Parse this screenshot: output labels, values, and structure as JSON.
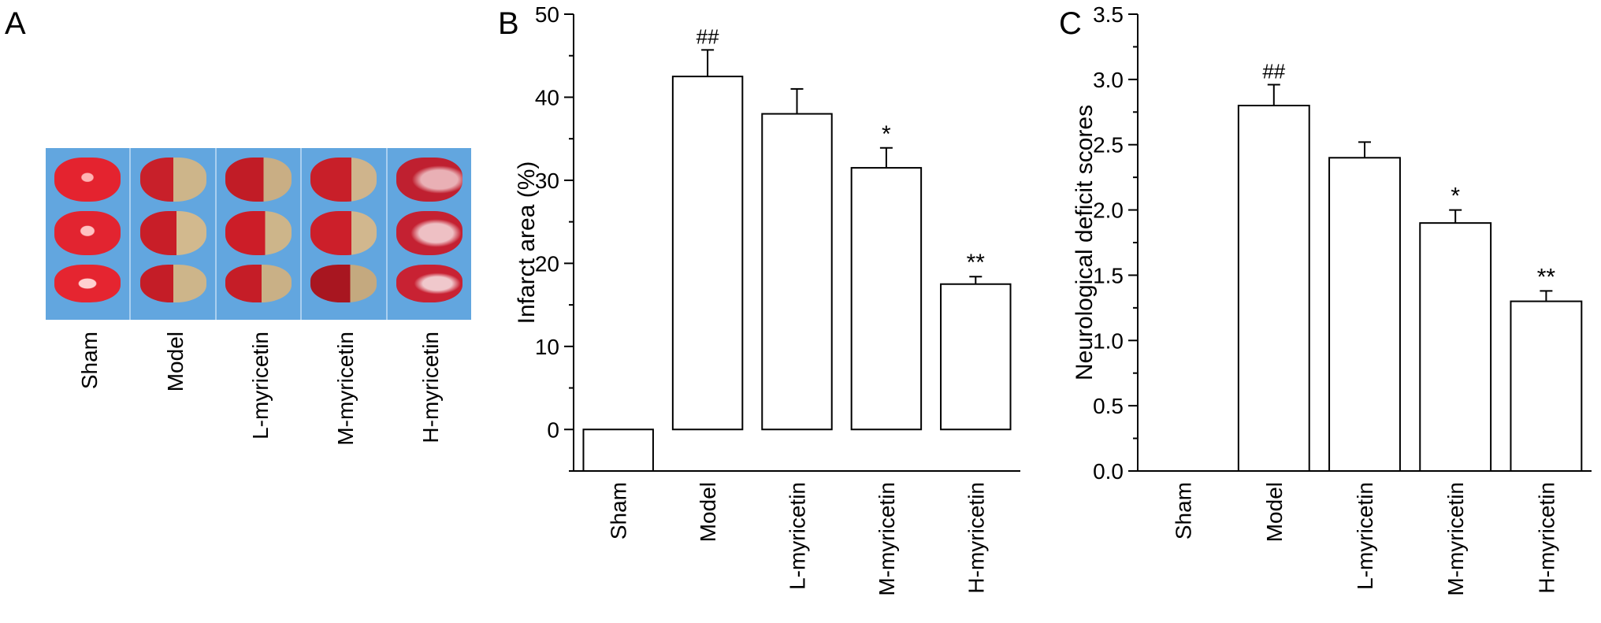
{
  "panels": {
    "a": "A",
    "b": "B",
    "c": "C"
  },
  "photo_groups": [
    "Sham",
    "Model",
    "L-myricetin",
    "M-myricetin",
    "H-myricetin"
  ],
  "colors": {
    "photo_background": "#62a6df",
    "slice_red": "#d9202c",
    "slice_pale": "#cdb58a",
    "bar_fill": "#ffffff",
    "axis": "#000000"
  },
  "chart_data": [
    {
      "type": "bar",
      "categories": [
        "Sham",
        "Model",
        "L-myricetin",
        "M-myricetin",
        "H-myricetin"
      ],
      "values": [
        0,
        42.5,
        38.0,
        31.5,
        17.5
      ],
      "errors": [
        0,
        3.2,
        3.0,
        2.4,
        0.9
      ],
      "annotations": [
        "",
        "##",
        "",
        "*",
        "**"
      ],
      "title": "",
      "xlabel": "",
      "ylabel": "Infarct area (%)",
      "ylim": [
        -5,
        50
      ],
      "yticks": [
        0,
        10,
        20,
        30,
        40,
        50
      ]
    },
    {
      "type": "bar",
      "categories": [
        "Sham",
        "Model",
        "L-myricetin",
        "M-myricetin",
        "H-myricetin"
      ],
      "values": [
        0,
        2.8,
        2.4,
        1.9,
        1.3
      ],
      "errors": [
        0,
        0.16,
        0.12,
        0.1,
        0.08
      ],
      "annotations": [
        "",
        "##",
        "",
        "*",
        "**"
      ],
      "title": "",
      "xlabel": "",
      "ylabel": "Neurological deficit scores",
      "ylim": [
        0,
        3.5
      ],
      "yticks": [
        "0.0",
        "0.5",
        "1.0",
        "1.5",
        "2.0",
        "2.5",
        "3.0",
        "3.5"
      ]
    }
  ]
}
